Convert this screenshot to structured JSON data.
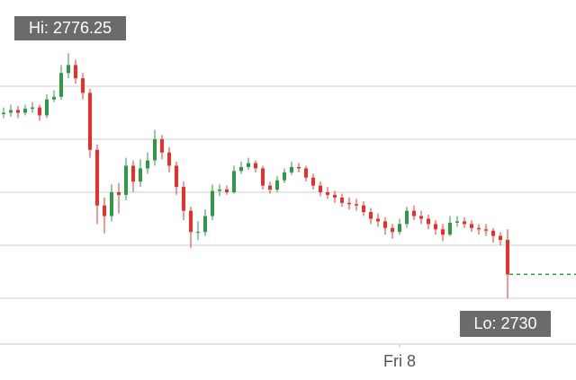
{
  "chart_data": {
    "type": "candlestick",
    "categories": [
      null,
      null,
      null,
      null,
      null,
      null,
      null,
      null,
      null,
      null,
      null,
      null,
      null,
      null,
      null,
      null,
      null,
      null,
      null,
      null,
      null,
      null,
      null,
      null,
      null,
      null,
      null,
      null,
      null,
      null,
      null,
      null,
      null,
      null,
      null,
      null,
      null,
      null,
      null,
      null,
      null,
      null,
      null,
      null,
      null,
      null,
      null,
      null,
      null,
      null,
      null,
      null,
      null,
      null,
      null,
      "Fri 8",
      null,
      null,
      null,
      null,
      null,
      null,
      null,
      null,
      null,
      null,
      null,
      null,
      null,
      null,
      null
    ],
    "open": [
      2764.75,
      2765.0,
      2765.5,
      2765.0,
      2765.75,
      2766.0,
      2764.5,
      2767.5,
      2768.0,
      2772.5,
      2774.0,
      2771.5,
      2768.75,
      2758.0,
      2747.5,
      2745.5,
      2750.0,
      2749.5,
      2755.0,
      2752.0,
      2754.5,
      2756.0,
      2760.0,
      2757.5,
      2755.0,
      2751.0,
      2746.5,
      2742.5,
      2742.5,
      2745.5,
      2750.25,
      2750.5,
      2750.0,
      2754.0,
      2754.75,
      2755.5,
      2754.5,
      2751.25,
      2750.5,
      2752.25,
      2753.75,
      2754.75,
      2754.5,
      2752.75,
      2751.25,
      2750.0,
      2749.5,
      2749.0,
      2748.0,
      2747.75,
      2747.5,
      2746.25,
      2745.0,
      2744.5,
      2743.25,
      2742.5,
      2744.0,
      2746.5,
      2745.5,
      2745.0,
      2744.0,
      2743.0,
      2742.0,
      2744.25,
      2744.5,
      2744.0,
      2743.25,
      2743.0,
      2742.75,
      2741.75,
      2741.0
    ],
    "high": [
      2766,
      2766.5,
      2766.25,
      2766.5,
      2767,
      2766.5,
      2768.5,
      2769.25,
      2774,
      2776.25,
      2775,
      2772.5,
      2769.5,
      2759,
      2749,
      2751.5,
      2751.75,
      2756.5,
      2756,
      2756.25,
      2757.5,
      2761.75,
      2760.75,
      2758.5,
      2755.75,
      2752,
      2747.25,
      2744.5,
      2746.75,
      2751.5,
      2751.5,
      2751.25,
      2755,
      2755.75,
      2756.5,
      2756,
      2755,
      2752,
      2753,
      2754.5,
      2755.75,
      2755.5,
      2755,
      2753.5,
      2752,
      2751,
      2750.25,
      2749.75,
      2749,
      2748.75,
      2748.25,
      2747,
      2746,
      2745.25,
      2744,
      2745,
      2747.25,
      2747.5,
      2746.5,
      2745.75,
      2744.75,
      2744,
      2745.5,
      2745.5,
      2745.25,
      2744.75,
      2744,
      2744,
      2743.25,
      2742.5,
      2743
    ],
    "low": [
      2764,
      2764.25,
      2764,
      2764.5,
      2765,
      2763.5,
      2764,
      2767,
      2767.5,
      2771.5,
      2770.5,
      2767.5,
      2756.5,
      2744,
      2742.25,
      2744.5,
      2746,
      2748.5,
      2750,
      2751,
      2753.5,
      2755,
      2756.25,
      2753.75,
      2749.5,
      2744.75,
      2739.5,
      2741,
      2741.75,
      2744.75,
      2749.25,
      2749.5,
      2749.75,
      2753.5,
      2754.25,
      2753.75,
      2750.5,
      2749.75,
      2750,
      2751.75,
      2753.25,
      2753.75,
      2752,
      2750.5,
      2749.25,
      2748.75,
      2748,
      2747.25,
      2746.75,
      2746.5,
      2745.5,
      2744,
      2743.5,
      2742,
      2741.25,
      2742,
      2743.25,
      2744.75,
      2744,
      2743,
      2742,
      2740.75,
      2741.75,
      2743.5,
      2743.25,
      2742.5,
      2742,
      2741.75,
      2740.5,
      2740,
      2730
    ],
    "close": [
      2765.0,
      2765.5,
      2765.0,
      2765.75,
      2766.0,
      2764.5,
      2767.5,
      2768.0,
      2772.5,
      2774.0,
      2771.5,
      2768.75,
      2758.0,
      2747.5,
      2745.5,
      2750.0,
      2749.5,
      2755.0,
      2752.0,
      2754.5,
      2756.0,
      2760.0,
      2757.5,
      2755.0,
      2751.0,
      2746.5,
      2742.5,
      2742.5,
      2745.5,
      2750.25,
      2750.5,
      2750.0,
      2754.0,
      2754.75,
      2755.5,
      2754.5,
      2751.25,
      2750.5,
      2752.25,
      2753.75,
      2754.75,
      2754.5,
      2752.75,
      2751.25,
      2750.0,
      2749.5,
      2749.0,
      2748.0,
      2747.75,
      2747.5,
      2746.25,
      2745.0,
      2744.5,
      2743.25,
      2742.5,
      2744.0,
      2746.5,
      2745.5,
      2745.0,
      2744.0,
      2743.0,
      2742.0,
      2744.25,
      2744.5,
      2744.0,
      2743.25,
      2743.0,
      2742.75,
      2741.75,
      2741.0,
      2734.5
    ],
    "up_color": "#2e9a47",
    "down_color": "#e8302a",
    "ylim": [
      2721.35,
      2786.27
    ],
    "grid_lines": [
      2730,
      2740,
      2750,
      2760,
      2770
    ],
    "hi_label": "Hi: 2776.25",
    "lo_label": "Lo: 2730"
  }
}
